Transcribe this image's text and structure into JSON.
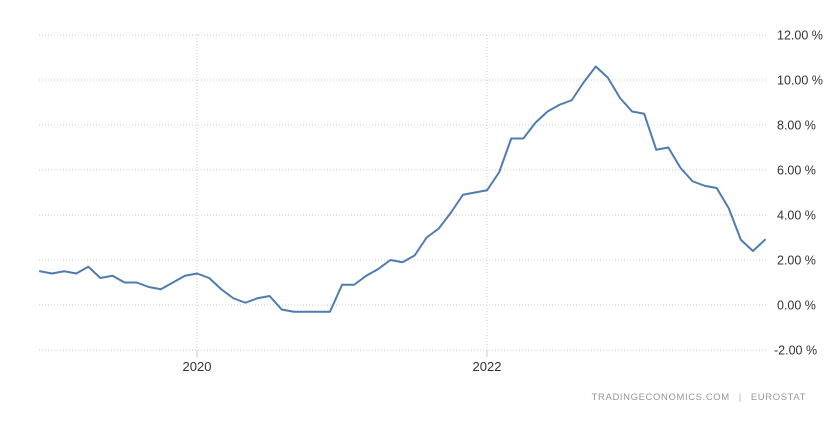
{
  "attribution": {
    "source_left": "TRADINGECONOMICS.COM",
    "separator": "|",
    "source_right": "EUROSTAT"
  },
  "chart_data": {
    "type": "line",
    "title": "",
    "unit": "%",
    "grid": "dotted",
    "legend": "none",
    "line_color": "#4f7cb0",
    "grid_color": "#cccccc",
    "ylim": [
      -2,
      12
    ],
    "y_tick_labels": [
      "12.00 %",
      "10.00 %",
      "8.00 %",
      "6.00 %",
      "4.00 %",
      "2.00 %",
      "0.00 %",
      "-2.00 %"
    ],
    "x_tick_labels": [
      "2020",
      "2022"
    ],
    "x": [
      "2018-12",
      "2019-01",
      "2019-02",
      "2019-03",
      "2019-04",
      "2019-05",
      "2019-06",
      "2019-07",
      "2019-08",
      "2019-09",
      "2019-10",
      "2019-11",
      "2019-12",
      "2020-01",
      "2020-02",
      "2020-03",
      "2020-04",
      "2020-05",
      "2020-06",
      "2020-07",
      "2020-08",
      "2020-09",
      "2020-10",
      "2020-11",
      "2020-12",
      "2021-01",
      "2021-02",
      "2021-03",
      "2021-04",
      "2021-05",
      "2021-06",
      "2021-07",
      "2021-08",
      "2021-09",
      "2021-10",
      "2021-11",
      "2021-12",
      "2022-01",
      "2022-02",
      "2022-03",
      "2022-04",
      "2022-05",
      "2022-06",
      "2022-07",
      "2022-08",
      "2022-09",
      "2022-10",
      "2022-11",
      "2022-12",
      "2023-01",
      "2023-02",
      "2023-03",
      "2023-04",
      "2023-05",
      "2023-06",
      "2023-07",
      "2023-08",
      "2023-09",
      "2023-10",
      "2023-11",
      "2023-12"
    ],
    "values": [
      1.5,
      1.4,
      1.5,
      1.4,
      1.7,
      1.2,
      1.3,
      1.0,
      1.0,
      0.8,
      0.7,
      1.0,
      1.3,
      1.4,
      1.2,
      0.7,
      0.3,
      0.1,
      0.3,
      0.4,
      -0.2,
      -0.3,
      -0.3,
      -0.3,
      -0.3,
      0.9,
      0.9,
      1.3,
      1.6,
      2.0,
      1.9,
      2.2,
      3.0,
      3.4,
      4.1,
      4.9,
      5.0,
      5.1,
      5.9,
      7.4,
      7.4,
      8.1,
      8.6,
      8.9,
      9.1,
      9.9,
      10.6,
      10.1,
      9.2,
      8.6,
      8.5,
      6.9,
      7.0,
      6.1,
      5.5,
      5.3,
      5.2,
      4.3,
      2.9,
      2.4,
      2.9
    ]
  }
}
